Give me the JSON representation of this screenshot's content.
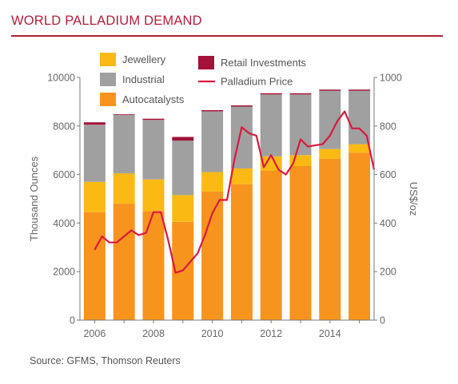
{
  "title": "WORLD PALLADIUM DEMAND",
  "source": "Source: GFMS, Thomson Reuters",
  "colors": {
    "brand": "#b01e3a",
    "jewellery": "#fbb914",
    "industrial": "#a0a0a0",
    "autocatalysts": "#f7941d",
    "retail": "#a3123a",
    "price_line": "#d7193f"
  },
  "chart_data": {
    "type": "bar",
    "stacked": true,
    "categories": [
      "2006",
      "2007",
      "2008",
      "2009",
      "2010",
      "2011",
      "2012",
      "2013",
      "2014",
      "2015"
    ],
    "x_tick_labels": [
      "2006",
      "2008",
      "2010",
      "2012",
      "2014"
    ],
    "ylabel": "Thousand Ounces",
    "ylim": [
      0,
      10000
    ],
    "y_ticks": [
      "0",
      "2000",
      "4000",
      "6000",
      "8000",
      "10000"
    ],
    "y2label": "US$/oz",
    "y2lim": [
      0,
      1000
    ],
    "y2_ticks": [
      "0",
      "200",
      "400",
      "600",
      "800",
      "1000"
    ],
    "legend": {
      "jewellery": "Jewellery",
      "industrial": "Industrial",
      "autocatalysts": "Autocatalysts",
      "retail": "Retail Investments",
      "price": "Palladium Price"
    },
    "series": [
      {
        "name": "Autocatalysts",
        "values": [
          4450,
          4800,
          4500,
          4050,
          5300,
          5600,
          6150,
          6350,
          6650,
          6900
        ]
      },
      {
        "name": "Jewellery",
        "values": [
          1250,
          1250,
          1300,
          1100,
          800,
          650,
          600,
          450,
          400,
          350
        ]
      },
      {
        "name": "Industrial",
        "values": [
          2350,
          2400,
          2450,
          2250,
          2500,
          2550,
          2550,
          2500,
          2400,
          2200
        ]
      },
      {
        "name": "Retail Investments",
        "values": [
          100,
          30,
          50,
          150,
          50,
          50,
          50,
          50,
          50,
          50
        ]
      }
    ],
    "price_line": {
      "name": "Palladium Price",
      "x": [
        2006.0,
        2006.25,
        2006.5,
        2006.75,
        2007.0,
        2007.25,
        2007.5,
        2007.75,
        2008.0,
        2008.25,
        2008.5,
        2008.75,
        2009.0,
        2009.25,
        2009.5,
        2009.75,
        2010.0,
        2010.25,
        2010.5,
        2010.75,
        2011.0,
        2011.25,
        2011.5,
        2011.75,
        2012.0,
        2012.25,
        2012.5,
        2012.75,
        2013.0,
        2013.25,
        2013.5,
        2013.75,
        2014.0,
        2014.25,
        2014.5,
        2014.75,
        2015.0,
        2015.25,
        2015.5
      ],
      "y": [
        290,
        345,
        320,
        320,
        345,
        370,
        350,
        360,
        445,
        445,
        330,
        195,
        205,
        240,
        275,
        350,
        440,
        495,
        495,
        660,
        795,
        770,
        760,
        630,
        680,
        620,
        600,
        645,
        745,
        715,
        720,
        725,
        760,
        820,
        860,
        790,
        790,
        760,
        620
      ]
    }
  }
}
